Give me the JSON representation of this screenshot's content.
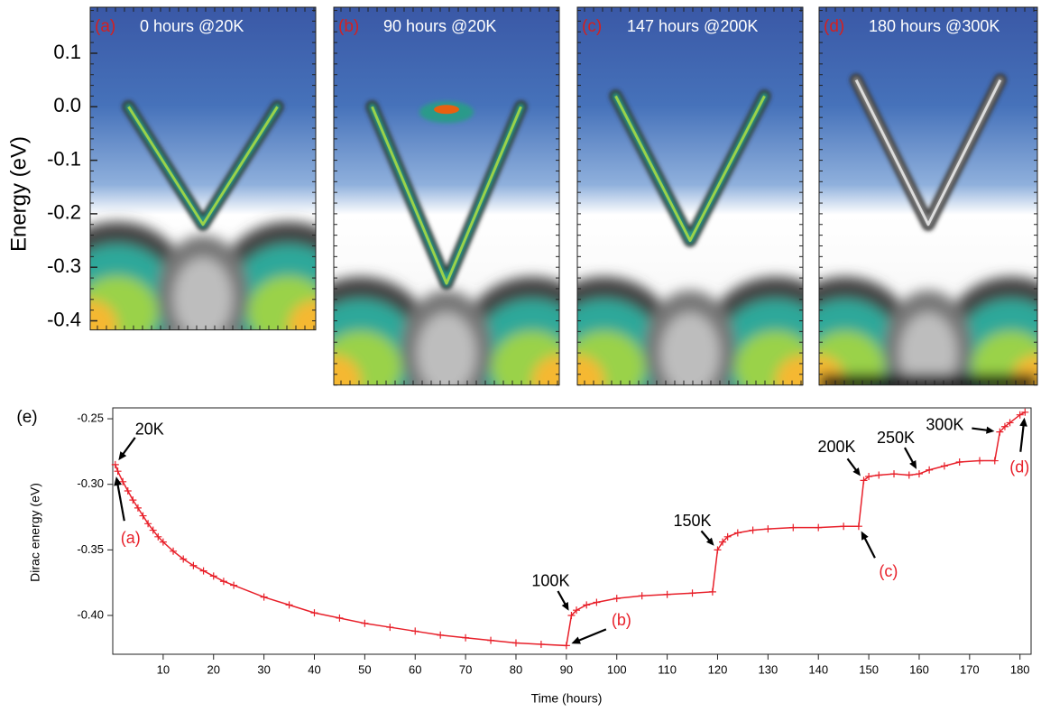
{
  "chart_data": [
    {
      "type": "image",
      "ylabel": "Energy (eV)",
      "yticks": [
        0.1,
        {
          "value": 0,
          "label": "0.0"
        },
        -0.1,
        -0.2,
        -0.3,
        -0.4
      ],
      "panels": [
        {
          "label": "(a)",
          "title": "0 hours @20K",
          "ylim": [
            -0.417,
            0.186
          ]
        },
        {
          "label": "(b)",
          "title": "90 hours @20K",
          "ylim": [
            -0.52,
            0.186
          ]
        },
        {
          "label": "(c)",
          "title": "147  hours @200K",
          "ylim": [
            -0.52,
            0.186
          ]
        },
        {
          "label": "(d)",
          "title": "180  hours @300K",
          "ylim": [
            -0.52,
            0.186
          ]
        }
      ]
    },
    {
      "type": "line",
      "label": "(e)",
      "xlabel": "Time (hours)",
      "ylabel": "Dirac energy (eV)",
      "color": "#e8202a",
      "x": [
        0.5,
        1,
        2,
        3,
        4,
        5,
        6,
        7,
        8,
        9,
        10,
        12,
        14,
        16,
        18,
        20,
        22,
        24,
        30,
        35,
        40,
        45,
        50,
        55,
        60,
        65,
        70,
        75,
        80,
        85,
        90,
        91,
        92,
        94,
        96,
        100,
        105,
        110,
        115,
        119,
        120,
        121,
        122,
        124,
        127,
        130,
        135,
        140,
        145,
        148,
        149,
        150,
        152,
        155,
        158,
        160,
        162,
        165,
        168,
        172,
        175,
        176,
        177,
        178,
        180,
        181
      ],
      "values": [
        -0.285,
        -0.29,
        -0.298,
        -0.305,
        -0.312,
        -0.318,
        -0.324,
        -0.33,
        -0.335,
        -0.34,
        -0.344,
        -0.351,
        -0.357,
        -0.362,
        -0.366,
        -0.37,
        -0.374,
        -0.377,
        -0.386,
        -0.392,
        -0.398,
        -0.402,
        -0.406,
        -0.409,
        -0.412,
        -0.415,
        -0.417,
        -0.419,
        -0.421,
        -0.422,
        -0.423,
        -0.4,
        -0.396,
        -0.392,
        -0.39,
        -0.387,
        -0.385,
        -0.384,
        -0.383,
        -0.382,
        -0.35,
        -0.344,
        -0.34,
        -0.337,
        -0.335,
        -0.334,
        -0.333,
        -0.333,
        -0.332,
        -0.332,
        -0.297,
        -0.294,
        -0.293,
        -0.292,
        -0.293,
        -0.292,
        -0.289,
        -0.286,
        -0.283,
        -0.282,
        -0.282,
        -0.26,
        -0.256,
        -0.253,
        -0.247,
        -0.245
      ],
      "xlim": [
        0,
        182.2
      ],
      "ylim": [
        -0.4296,
        -0.2417
      ],
      "xticks": [
        10,
        20,
        30,
        40,
        50,
        60,
        70,
        80,
        90,
        100,
        110,
        120,
        130,
        140,
        150,
        160,
        170,
        180
      ],
      "yticks": [
        -0.25,
        {
          "value": -0.3,
          "label": "-0.30"
        },
        -0.35,
        {
          "value": -0.4,
          "label": "-0.40"
        }
      ],
      "annotations": [
        {
          "text": "20K",
          "x": 0.5,
          "y": -0.285,
          "color": "#000000"
        },
        {
          "text": "(a)",
          "x": 0.5,
          "y": -0.29,
          "color": "#e8202a"
        },
        {
          "text": "100K",
          "x": 91,
          "y": -0.4,
          "color": "#000000"
        },
        {
          "text": "(b)",
          "x": 90,
          "y": -0.423,
          "color": "#e8202a"
        },
        {
          "text": "150K",
          "x": 120,
          "y": -0.35,
          "color": "#000000"
        },
        {
          "text": "(c)",
          "x": 148,
          "y": -0.332,
          "color": "#e8202a"
        },
        {
          "text": "200K",
          "x": 149,
          "y": -0.297,
          "color": "#000000"
        },
        {
          "text": "250K",
          "x": 160,
          "y": -0.292,
          "color": "#000000"
        },
        {
          "text": "300K",
          "x": 176,
          "y": -0.26,
          "color": "#000000"
        },
        {
          "text": "(d)",
          "x": 181,
          "y": -0.245,
          "color": "#e8202a"
        }
      ]
    }
  ]
}
